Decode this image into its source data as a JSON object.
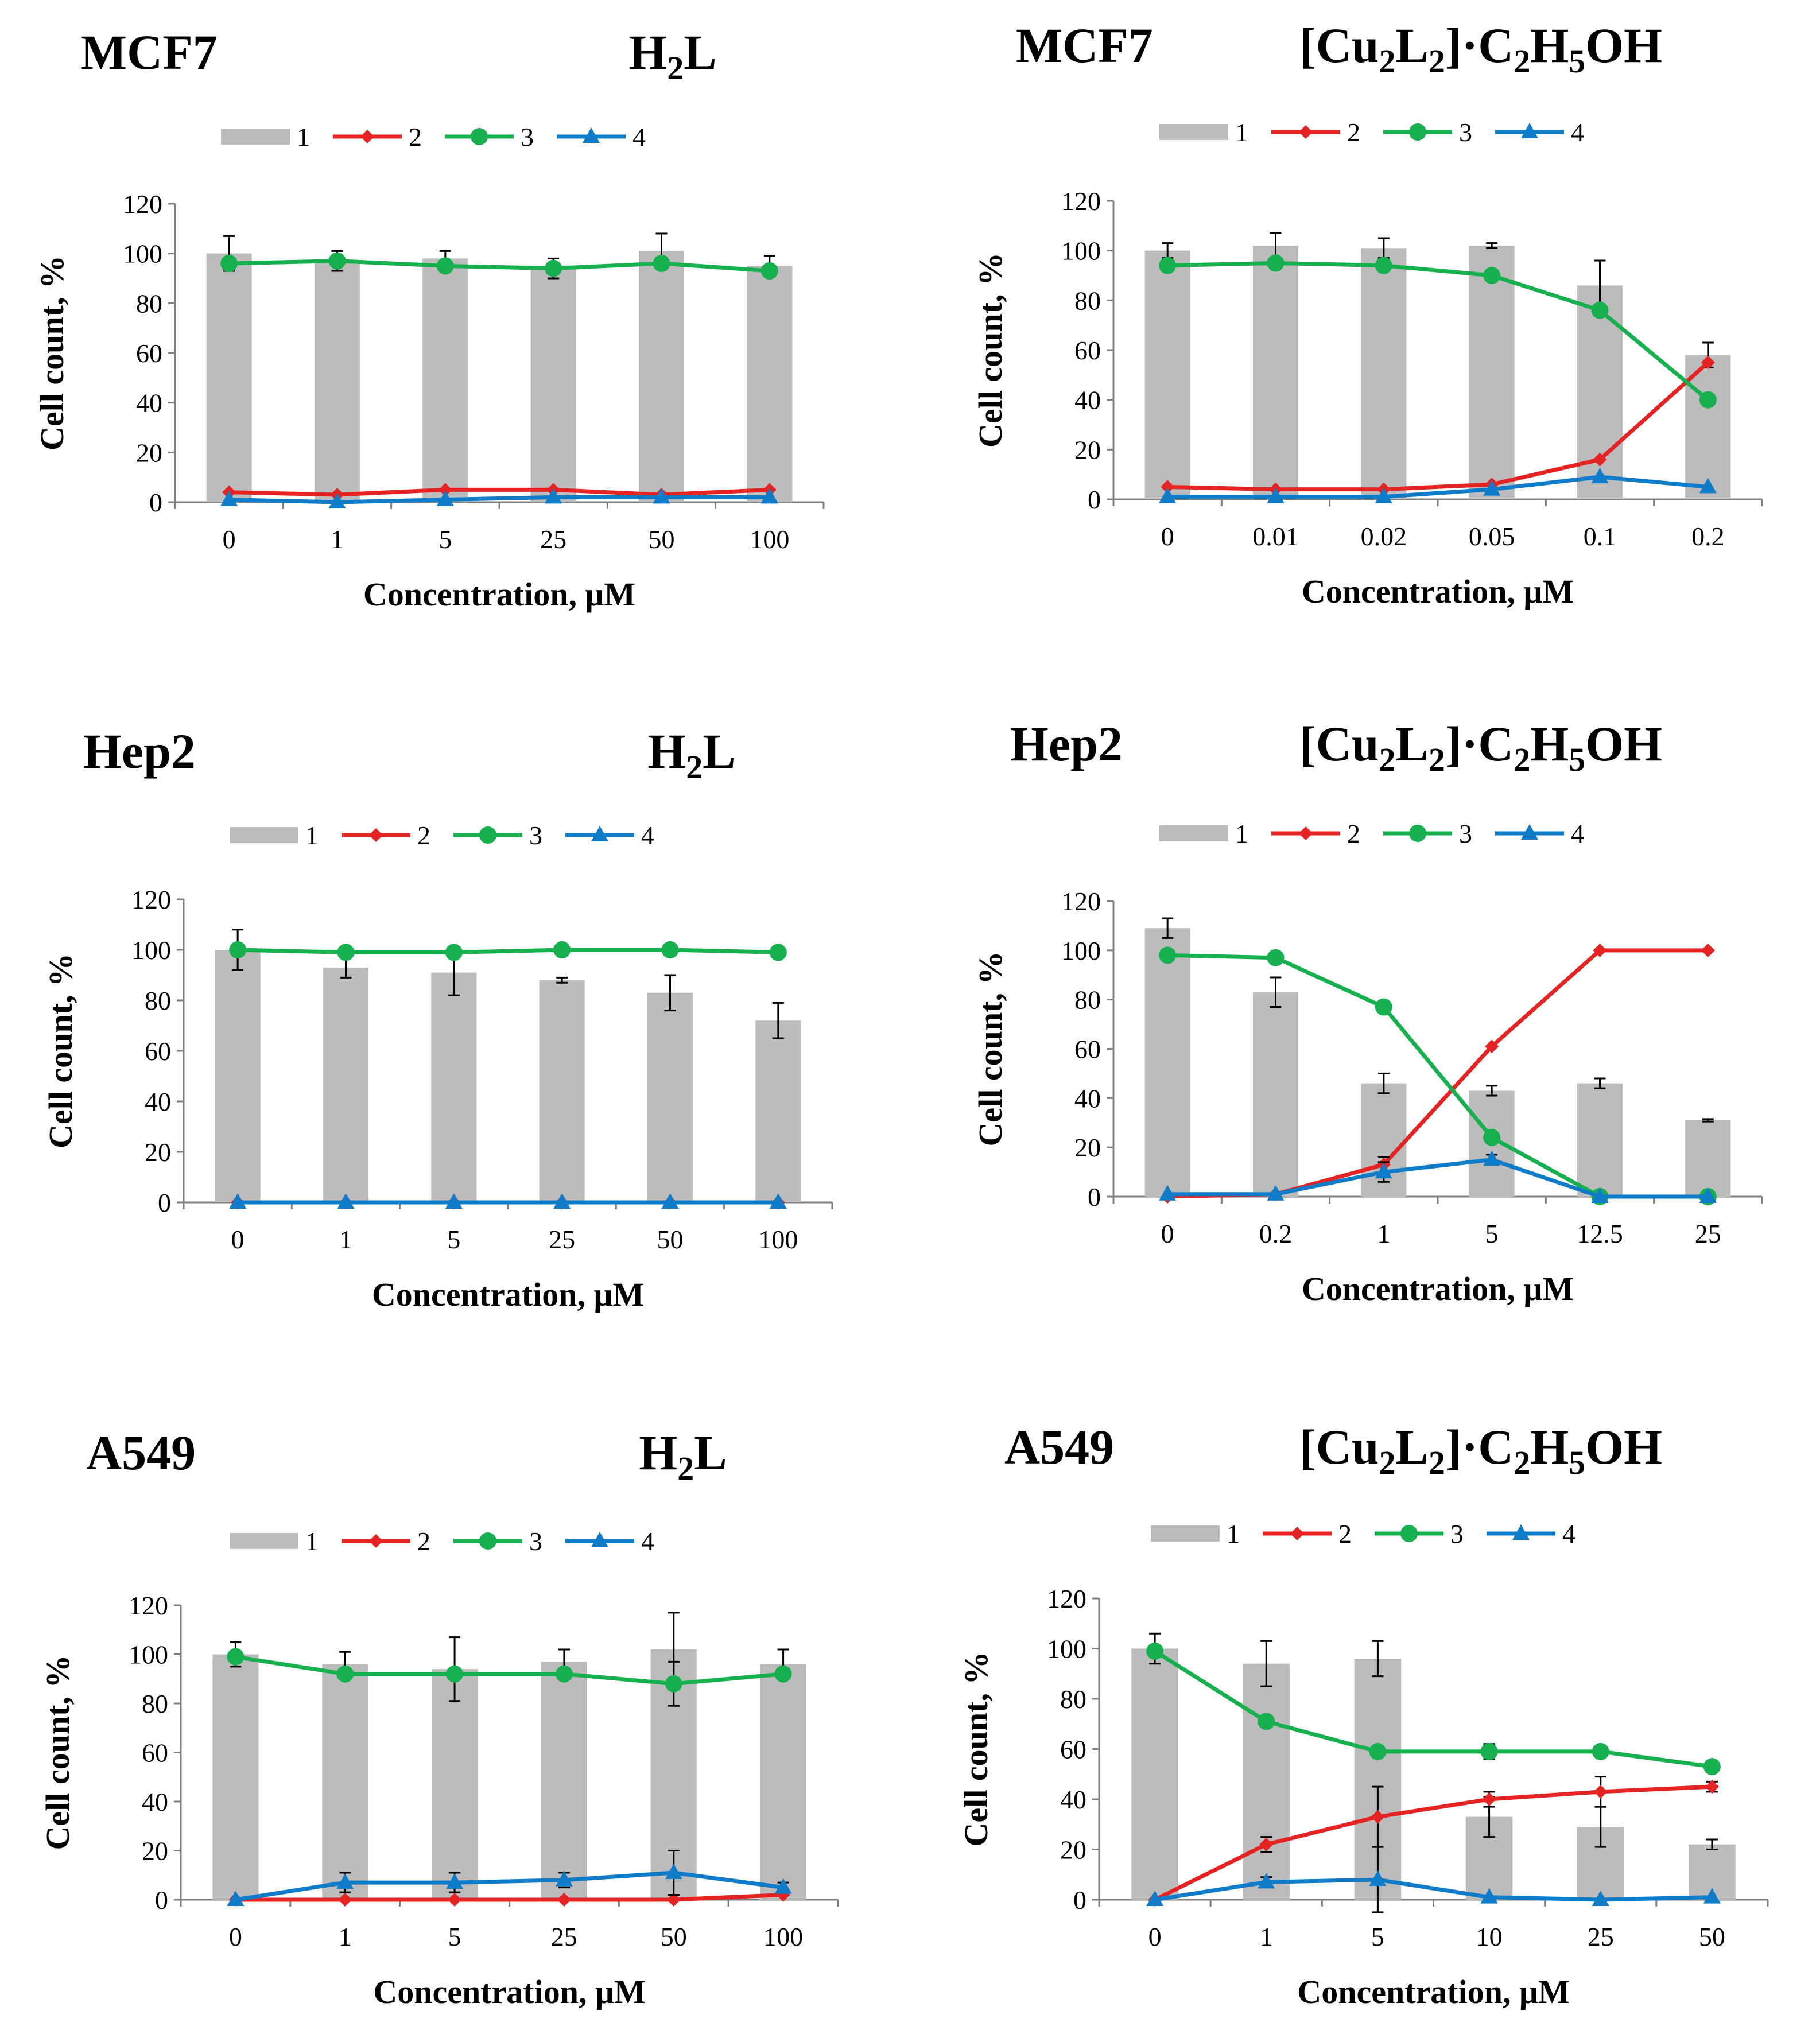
{
  "chart_data": [
    {
      "type": "bar",
      "cell_line": "MCF7",
      "compound": "H2L",
      "categories": [
        "0",
        "1",
        "5",
        "25",
        "50",
        "100"
      ],
      "xlabel": "Concentration, μM",
      "ylabel": "Cell count, %",
      "ylim": [
        0,
        120
      ],
      "yticks": [
        "0",
        "20",
        "40",
        "60",
        "80",
        "100",
        "120"
      ],
      "legend": [
        "1",
        "2",
        "3",
        "4"
      ],
      "series": [
        {
          "name": "1",
          "kind": "bar",
          "values": [
            100,
            97,
            98,
            94,
            101,
            95
          ],
          "errors": [
            7,
            4,
            3,
            4,
            7,
            4
          ]
        },
        {
          "name": "2",
          "kind": "line",
          "marker": "diamond",
          "values": [
            4,
            3,
            5,
            5,
            3,
            5
          ],
          "errors": [
            0,
            0,
            0,
            0,
            0,
            0
          ]
        },
        {
          "name": "3",
          "kind": "line",
          "marker": "circle",
          "values": [
            96,
            97,
            95,
            94,
            96,
            93
          ],
          "errors": [
            0,
            0,
            0,
            0,
            0,
            0
          ]
        },
        {
          "name": "4",
          "kind": "line",
          "marker": "triangle",
          "values": [
            1,
            0,
            1,
            2,
            2,
            2
          ],
          "errors": [
            0,
            0,
            0,
            0,
            0,
            0
          ]
        }
      ]
    },
    {
      "type": "bar",
      "cell_line": "MCF7",
      "compound": "[Cu2L2]·C2H5OH",
      "categories": [
        "0",
        "0.01",
        "0.02",
        "0.05",
        "0.1",
        "0.2"
      ],
      "xlabel": "Concentration, μM",
      "ylabel": "Cell count, %",
      "ylim": [
        0,
        120
      ],
      "yticks": [
        "0",
        "20",
        "40",
        "60",
        "80",
        "100",
        "120"
      ],
      "legend": [
        "1",
        "2",
        "3",
        "4"
      ],
      "series": [
        {
          "name": "1",
          "kind": "bar",
          "values": [
            100,
            102,
            101,
            102,
            86,
            58
          ],
          "errors": [
            3,
            5,
            4,
            1,
            10,
            5
          ]
        },
        {
          "name": "2",
          "kind": "line",
          "marker": "diamond",
          "values": [
            5,
            4,
            4,
            6,
            16,
            55
          ],
          "errors": [
            0,
            0,
            0,
            0,
            0,
            0
          ]
        },
        {
          "name": "3",
          "kind": "line",
          "marker": "circle",
          "values": [
            94,
            95,
            94,
            90,
            76,
            40
          ],
          "errors": [
            0,
            0,
            0,
            0,
            0,
            0
          ]
        },
        {
          "name": "4",
          "kind": "line",
          "marker": "triangle",
          "values": [
            1,
            1,
            1,
            4,
            9,
            5
          ],
          "errors": [
            0,
            0,
            0,
            0,
            0,
            0
          ]
        }
      ]
    },
    {
      "type": "bar",
      "cell_line": "Hep2",
      "compound": "H2L",
      "categories": [
        "0",
        "1",
        "5",
        "25",
        "50",
        "100"
      ],
      "xlabel": "Concentration, μM",
      "ylabel": "Cell count, %",
      "ylim": [
        0,
        120
      ],
      "yticks": [
        "0",
        "20",
        "40",
        "60",
        "80",
        "100",
        "120"
      ],
      "legend": [
        "1",
        "2",
        "3",
        "4"
      ],
      "series": [
        {
          "name": "1",
          "kind": "bar",
          "values": [
            100,
            93,
            91,
            88,
            83,
            72
          ],
          "errors": [
            8,
            4,
            9,
            1,
            7,
            7
          ]
        },
        {
          "name": "2",
          "kind": "line",
          "marker": "diamond",
          "values": [
            0,
            0,
            0,
            0,
            0,
            0
          ],
          "errors": [
            0,
            0,
            0,
            0,
            0,
            0
          ]
        },
        {
          "name": "3",
          "kind": "line",
          "marker": "circle",
          "values": [
            100,
            99,
            99,
            100,
            100,
            99
          ],
          "errors": [
            0,
            0,
            0,
            0,
            0,
            0
          ]
        },
        {
          "name": "4",
          "kind": "line",
          "marker": "triangle",
          "values": [
            0,
            0,
            0,
            0,
            0,
            0
          ],
          "errors": [
            0,
            0,
            0,
            0,
            0,
            0
          ]
        }
      ]
    },
    {
      "type": "bar",
      "cell_line": "Hep2",
      "compound": "[Cu2L2]·C2H5OH",
      "categories": [
        "0",
        "0.2",
        "1",
        "5",
        "12.5",
        "25"
      ],
      "xlabel": "Concentration,  μM",
      "ylabel": "Cell count, %",
      "ylim": [
        0,
        120
      ],
      "yticks": [
        "0",
        "20",
        "40",
        "60",
        "80",
        "100",
        "120"
      ],
      "legend": [
        "1",
        "2",
        "3",
        "4"
      ],
      "series": [
        {
          "name": "1",
          "kind": "bar",
          "values": [
            109,
            83,
            46,
            43,
            46,
            31
          ],
          "errors": [
            4,
            6,
            4,
            2,
            2,
            0.5
          ]
        },
        {
          "name": "2",
          "kind": "line",
          "marker": "diamond",
          "values": [
            0,
            1,
            13,
            61,
            100,
            100
          ],
          "errors": [
            0,
            0,
            3,
            0,
            0,
            0
          ]
        },
        {
          "name": "3",
          "kind": "line",
          "marker": "circle",
          "values": [
            98,
            97,
            77,
            24,
            0,
            0
          ],
          "errors": [
            0,
            0,
            0,
            0,
            0,
            0
          ]
        },
        {
          "name": "4",
          "kind": "line",
          "marker": "triangle",
          "values": [
            1,
            1,
            10,
            15,
            0,
            0
          ],
          "errors": [
            0,
            0,
            4,
            2,
            0,
            0
          ]
        }
      ]
    },
    {
      "type": "bar",
      "cell_line": "A549",
      "compound": "H2L",
      "categories": [
        "0",
        "1",
        "5",
        "25",
        "50",
        "100"
      ],
      "xlabel": "Concentration, μM",
      "ylabel": "Cell count, %",
      "ylim": [
        0,
        120
      ],
      "yticks": [
        "0",
        "20",
        "40",
        "60",
        "80",
        "100",
        "120"
      ],
      "legend": [
        "1",
        "2",
        "3",
        "4"
      ],
      "series": [
        {
          "name": "1",
          "kind": "bar",
          "values": [
            100,
            96,
            94,
            97,
            102,
            96
          ],
          "errors": [
            5,
            5,
            13,
            5,
            15,
            6
          ]
        },
        {
          "name": "2",
          "kind": "line",
          "marker": "diamond",
          "values": [
            0,
            0,
            0,
            0,
            0,
            2
          ],
          "errors": [
            0,
            0,
            0,
            0,
            0,
            0
          ]
        },
        {
          "name": "3",
          "kind": "line",
          "marker": "circle",
          "values": [
            99,
            92,
            92,
            92,
            88,
            92
          ],
          "errors": [
            0,
            0,
            0,
            0,
            9,
            0
          ]
        },
        {
          "name": "4",
          "kind": "line",
          "marker": "triangle",
          "values": [
            0,
            7,
            7,
            8,
            11,
            5
          ],
          "errors": [
            0,
            4,
            4,
            3,
            9,
            2
          ]
        }
      ]
    },
    {
      "type": "bar",
      "cell_line": "A549",
      "compound": "[Cu2L2]·C2H5OH",
      "categories": [
        "0",
        "1",
        "5",
        "10",
        "25",
        "50"
      ],
      "xlabel": "Concentration, μM",
      "ylabel": "Cell count, %",
      "ylim": [
        0,
        120
      ],
      "yticks": [
        "0",
        "20",
        "40",
        "60",
        "80",
        "100",
        "120"
      ],
      "legend": [
        "1",
        "2",
        "3",
        "4"
      ],
      "series": [
        {
          "name": "1",
          "kind": "bar",
          "values": [
            100,
            94,
            96,
            33,
            29,
            22
          ],
          "errors": [
            6,
            9,
            7,
            8,
            8,
            2
          ]
        },
        {
          "name": "2",
          "kind": "line",
          "marker": "diamond",
          "values": [
            0,
            22,
            33,
            40,
            43,
            45
          ],
          "errors": [
            0,
            3,
            12,
            3,
            6,
            2
          ]
        },
        {
          "name": "3",
          "kind": "line",
          "marker": "circle",
          "values": [
            99,
            71,
            59,
            59,
            59,
            53
          ],
          "errors": [
            0,
            0,
            0,
            3,
            0,
            2
          ]
        },
        {
          "name": "4",
          "kind": "line",
          "marker": "triangle",
          "values": [
            0,
            7,
            8,
            1,
            0,
            1
          ],
          "errors": [
            0,
            2,
            13,
            0,
            0,
            0
          ]
        }
      ]
    }
  ],
  "colors": {
    "bar": "#bcbcbc",
    "series2": "#e52322",
    "series3": "#16b04f",
    "series4": "#0e7cc8",
    "axis": "#7f7f7f"
  }
}
